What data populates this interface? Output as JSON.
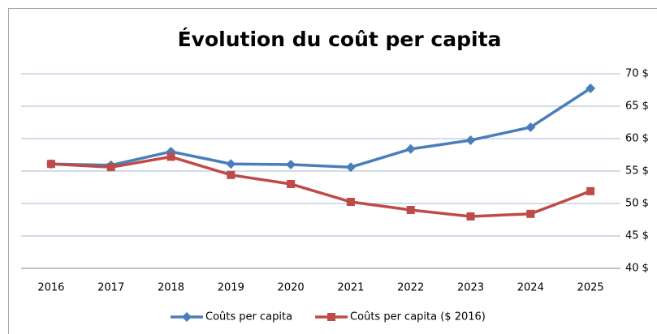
{
  "chart_data": {
    "type": "line",
    "title": "Évolution du coût per capita",
    "categories": [
      "2016",
      "2017",
      "2018",
      "2019",
      "2020",
      "2021",
      "2022",
      "2023",
      "2024",
      "2025"
    ],
    "series": [
      {
        "name": "Coûts per capita",
        "color": "#4a7ebb",
        "marker": "diamond",
        "values": [
          56.1,
          55.9,
          58.0,
          56.1,
          56.0,
          55.6,
          58.4,
          59.75,
          61.75,
          67.75
        ]
      },
      {
        "name": "Coûts per capita ($ 2016)",
        "color": "#be4b48",
        "marker": "square",
        "values": [
          56.1,
          55.6,
          57.2,
          54.4,
          53.0,
          50.25,
          49.0,
          48.0,
          48.4,
          51.9
        ]
      }
    ],
    "ylim": [
      40,
      70
    ],
    "yticks": [
      {
        "value": 40,
        "label": "40 $"
      },
      {
        "value": 45,
        "label": "45 $"
      },
      {
        "value": 50,
        "label": "50 $"
      },
      {
        "value": 55,
        "label": "55 $"
      },
      {
        "value": 60,
        "label": "60 $"
      },
      {
        "value": 65,
        "label": "65 $"
      },
      {
        "value": 70,
        "label": "70 $"
      }
    ],
    "grid": true,
    "y_axis_side": "right",
    "legend": "bottom"
  }
}
